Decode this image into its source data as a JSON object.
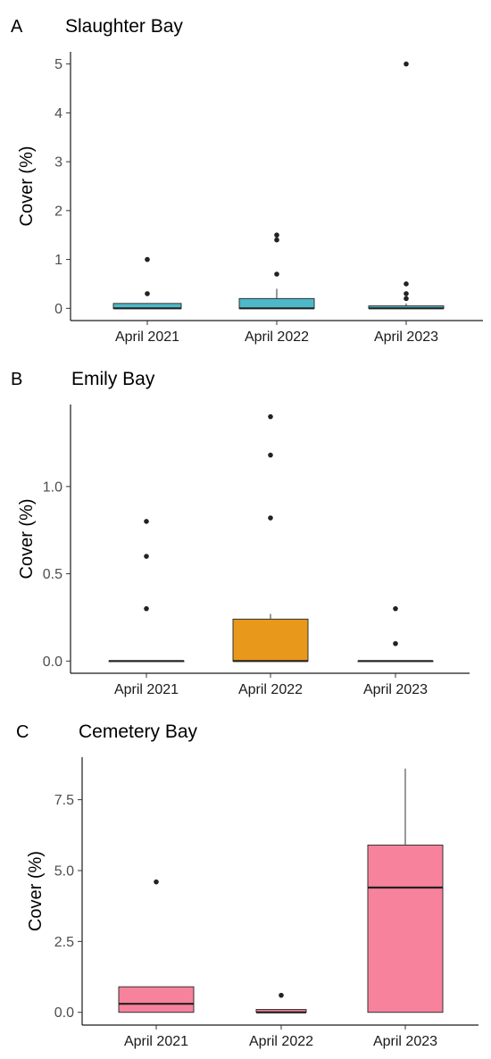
{
  "chart_data": [
    {
      "type": "box",
      "panel": "A",
      "title": "Slaughter Bay",
      "ylabel": "Cover (%)",
      "ylim": [
        -0.25,
        5.25
      ],
      "yticks": [
        0,
        1,
        2,
        3,
        4,
        5
      ],
      "ytick_labels": [
        "0",
        "1",
        "2",
        "3",
        "4",
        "5"
      ],
      "categories": [
        "April 2021",
        "April 2022",
        "April 2023"
      ],
      "fill": "#4db8c8",
      "boxes": [
        {
          "q1": 0.0,
          "median": 0.0,
          "q3": 0.1,
          "whisker_low": 0.0,
          "whisker_high": 0.1,
          "outliers": [
            1.0,
            0.3
          ]
        },
        {
          "q1": 0.0,
          "median": 0.0,
          "q3": 0.2,
          "whisker_low": 0.0,
          "whisker_high": 0.4,
          "outliers": [
            1.5,
            1.4,
            0.7
          ]
        },
        {
          "q1": 0.0,
          "median": 0.0,
          "q3": 0.05,
          "whisker_low": 0.0,
          "whisker_high": 0.1,
          "outliers": [
            5.0,
            0.5,
            0.3,
            0.2
          ]
        }
      ],
      "grid": false
    },
    {
      "type": "box",
      "panel": "B",
      "title": "Emily Bay",
      "ylabel": "Cover (%)",
      "ylim": [
        -0.07,
        1.47
      ],
      "yticks": [
        0,
        0.5,
        1.0
      ],
      "ytick_labels": [
        "0.0",
        "0.5",
        "1.0"
      ],
      "categories": [
        "April 2021",
        "April 2022",
        "April 2023"
      ],
      "fill": "#e8981a",
      "boxes": [
        {
          "q1": 0.0,
          "median": 0.0,
          "q3": 0.0,
          "whisker_low": 0.0,
          "whisker_high": 0.0,
          "outliers": [
            0.8,
            0.6,
            0.3
          ]
        },
        {
          "q1": 0.0,
          "median": 0.0,
          "q3": 0.24,
          "whisker_low": 0.0,
          "whisker_high": 0.27,
          "outliers": [
            1.4,
            1.18,
            0.82
          ]
        },
        {
          "q1": 0.0,
          "median": 0.0,
          "q3": 0.0,
          "whisker_low": 0.0,
          "whisker_high": 0.0,
          "outliers": [
            0.3,
            0.1
          ]
        }
      ],
      "grid": false
    },
    {
      "type": "box",
      "panel": "C",
      "title": "Cemetery Bay",
      "ylabel": "Cover (%)",
      "ylim": [
        -0.45,
        9.0
      ],
      "yticks": [
        0,
        2.5,
        5.0,
        7.5
      ],
      "ytick_labels": [
        "0.0",
        "2.5",
        "5.0",
        "7.5"
      ],
      "categories": [
        "April 2021",
        "April 2022",
        "April 2023"
      ],
      "fill": "#f7829c",
      "boxes": [
        {
          "q1": 0.0,
          "median": 0.3,
          "q3": 0.9,
          "whisker_low": 0.0,
          "whisker_high": 0.9,
          "outliers": [
            4.6
          ]
        },
        {
          "q1": 0.0,
          "median": 0.0,
          "q3": 0.1,
          "whisker_low": 0.0,
          "whisker_high": 0.1,
          "outliers": [
            0.6
          ]
        },
        {
          "q1": 0.0,
          "median": 4.4,
          "q3": 5.9,
          "whisker_low": 0.0,
          "whisker_high": 8.6,
          "outliers": []
        }
      ],
      "grid": false
    }
  ]
}
